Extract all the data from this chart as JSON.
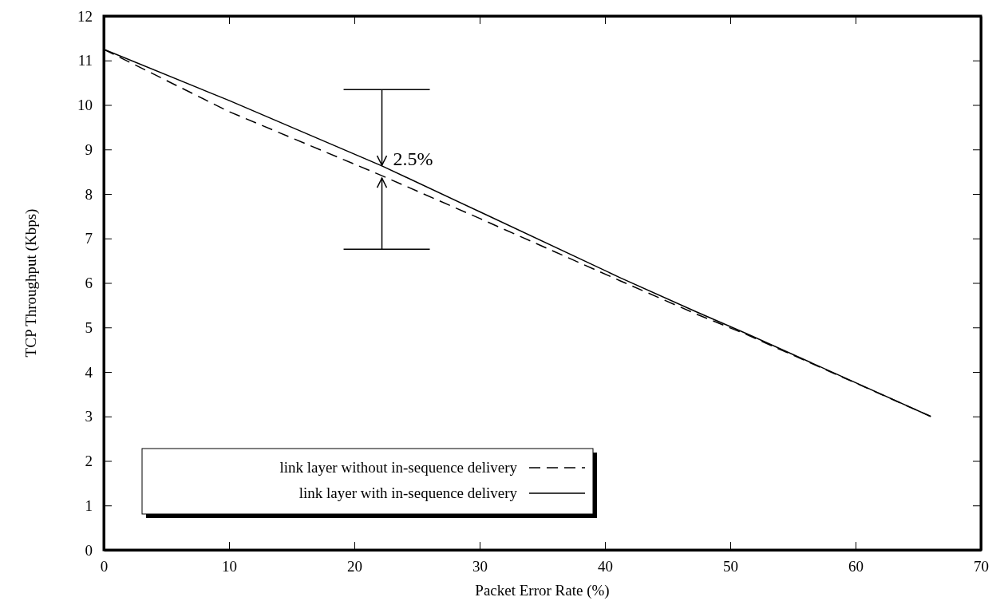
{
  "chart_data": {
    "type": "line",
    "xlabel": "Packet Error Rate (%)",
    "ylabel": "TCP Throughput (Kbps)",
    "xlim": [
      0,
      70
    ],
    "xticks": [
      0,
      10,
      20,
      30,
      40,
      50,
      60,
      70
    ],
    "ylim": [
      0,
      12
    ],
    "yticks": [
      0,
      1,
      2,
      3,
      4,
      5,
      6,
      7,
      8,
      9,
      10,
      11,
      12
    ],
    "grid": false,
    "legend": "bottom left",
    "marker": "none",
    "series": [
      {
        "name": "link layer without in-sequence delivery",
        "color": "#000000",
        "line_style": "dashed",
        "x": [
          0,
          10,
          22.2,
          30,
          41.2,
          47.3,
          51.3,
          66
        ],
        "values": [
          11.25,
          9.85,
          8.41,
          7.45,
          6.05,
          5.3,
          4.84,
          3.0
        ]
      },
      {
        "name": "link layer with in-sequence delivery",
        "color": "#000000",
        "line_style": "solid",
        "x": [
          0,
          10,
          22.2,
          30,
          41.2,
          47.3,
          51.3,
          66
        ],
        "values": [
          11.25,
          10.1,
          8.63,
          7.6,
          6.12,
          5.35,
          4.86,
          3.0
        ]
      }
    ],
    "annotations": [
      {
        "text": "2.5%",
        "x": 22.2,
        "y": 8.5
      }
    ]
  }
}
